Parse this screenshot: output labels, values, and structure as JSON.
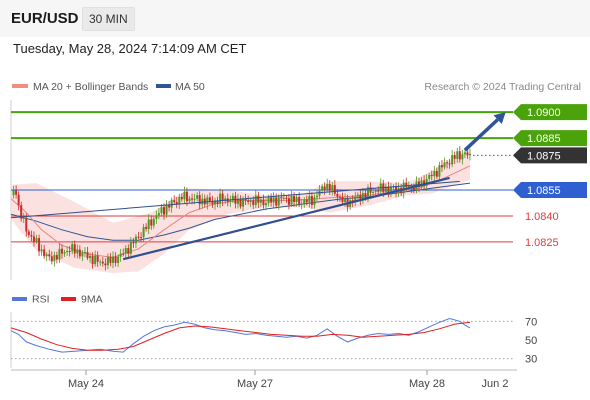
{
  "header": {
    "symbol": "EUR/USD",
    "timeframe": "30 MIN"
  },
  "timestamp": "Tuesday, May 28, 2024 7:14:09 AM CET",
  "chart_data": [
    {
      "type": "line",
      "title": "",
      "legend": [
        {
          "name": "MA 20 + Bollinger Bands",
          "color": "#f28b82"
        },
        {
          "name": "MA 50",
          "color": "#2f5597"
        }
      ],
      "legend_placement": "top-left",
      "watermark": "Research © 2024 Trading Central",
      "ylim": [
        1.0803,
        1.0907
      ],
      "current_price": {
        "label": "1.0875",
        "value": 1.0875,
        "color": "#333333"
      },
      "levels": [
        {
          "label": "1.0900",
          "value": 1.09,
          "kind": "resistance",
          "color": "#4aa30a"
        },
        {
          "label": "1.0885",
          "value": 1.0885,
          "kind": "resistance",
          "color": "#4aa30a"
        },
        {
          "label": "1.0855",
          "value": 1.0855,
          "kind": "pivot",
          "color": "#2f5fd0"
        },
        {
          "label": "1.0840",
          "value": 1.084,
          "kind": "support",
          "color": "#e23a3a"
        },
        {
          "label": "1.0825",
          "value": 1.0825,
          "kind": "support",
          "color": "#e23a3a"
        }
      ],
      "x_ticks": [
        "May 24",
        "May 27",
        "May 28",
        "Jun 2"
      ],
      "price_path": [
        [
          0,
          1.0852
        ],
        [
          2,
          1.0855
        ],
        [
          3,
          1.0845
        ],
        [
          4,
          1.084
        ],
        [
          6,
          1.0832
        ],
        [
          9,
          1.0826
        ],
        [
          12,
          1.082
        ],
        [
          15,
          1.0815
        ],
        [
          19,
          1.0818
        ],
        [
          23,
          1.0821
        ],
        [
          27,
          1.0819
        ],
        [
          31,
          1.0816
        ],
        [
          35,
          1.0813
        ],
        [
          39,
          1.0814
        ],
        [
          43,
          1.0817
        ],
        [
          47,
          1.0823
        ],
        [
          51,
          1.083
        ],
        [
          55,
          1.0837
        ],
        [
          59,
          1.0843
        ],
        [
          63,
          1.0847
        ],
        [
          67,
          1.0851
        ],
        [
          71,
          1.085
        ],
        [
          75,
          1.0849
        ],
        [
          79,
          1.0848
        ],
        [
          83,
          1.085
        ],
        [
          87,
          1.0849
        ],
        [
          91,
          1.0848
        ],
        [
          95,
          1.0849
        ],
        [
          99,
          1.0848
        ],
        [
          103,
          1.0849
        ],
        [
          107,
          1.085
        ],
        [
          111,
          1.0849
        ],
        [
          115,
          1.0848
        ],
        [
          119,
          1.085
        ],
        [
          123,
          1.0858
        ],
        [
          127,
          1.0854
        ],
        [
          131,
          1.0847
        ],
        [
          135,
          1.085
        ],
        [
          139,
          1.0853
        ],
        [
          143,
          1.0855
        ],
        [
          147,
          1.0856
        ],
        [
          151,
          1.0855
        ],
        [
          155,
          1.0857
        ],
        [
          159,
          1.0857
        ],
        [
          163,
          1.0861
        ],
        [
          167,
          1.0866
        ],
        [
          171,
          1.0871
        ],
        [
          175,
          1.0875
        ],
        [
          178,
          1.0876
        ],
        [
          180,
          1.0874
        ]
      ],
      "ma20": [
        [
          0,
          1.085
        ],
        [
          6,
          1.0842
        ],
        [
          12,
          1.0832
        ],
        [
          20,
          1.0823
        ],
        [
          30,
          1.0818
        ],
        [
          40,
          1.0816
        ],
        [
          50,
          1.0821
        ],
        [
          60,
          1.0832
        ],
        [
          70,
          1.0842
        ],
        [
          80,
          1.0847
        ],
        [
          90,
          1.0849
        ],
        [
          100,
          1.0849
        ],
        [
          110,
          1.0849
        ],
        [
          120,
          1.085
        ],
        [
          130,
          1.0851
        ],
        [
          140,
          1.0852
        ],
        [
          150,
          1.0854
        ],
        [
          160,
          1.0856
        ],
        [
          170,
          1.0862
        ],
        [
          180,
          1.0869
        ]
      ],
      "bollinger_upper": [
        [
          0,
          1.0858
        ],
        [
          10,
          1.0859
        ],
        [
          25,
          1.0848
        ],
        [
          40,
          1.0836
        ],
        [
          55,
          1.0842
        ],
        [
          70,
          1.0856
        ],
        [
          85,
          1.0855
        ],
        [
          100,
          1.0852
        ],
        [
          115,
          1.0853
        ],
        [
          125,
          1.086
        ],
        [
          140,
          1.086
        ],
        [
          155,
          1.0859
        ],
        [
          165,
          1.0866
        ],
        [
          180,
          1.0879
        ]
      ],
      "bollinger_lower": [
        [
          0,
          1.0838
        ],
        [
          10,
          1.082
        ],
        [
          25,
          1.081
        ],
        [
          40,
          1.0807
        ],
        [
          50,
          1.0808
        ],
        [
          60,
          1.0818
        ],
        [
          70,
          1.0832
        ],
        [
          85,
          1.0841
        ],
        [
          100,
          1.0845
        ],
        [
          115,
          1.0845
        ],
        [
          125,
          1.0842
        ],
        [
          140,
          1.0846
        ],
        [
          155,
          1.0852
        ],
        [
          165,
          1.0853
        ],
        [
          180,
          1.0861
        ]
      ],
      "ma50": [
        [
          0,
          1.0841
        ],
        [
          10,
          1.0837
        ],
        [
          20,
          1.0832
        ],
        [
          30,
          1.0828
        ],
        [
          40,
          1.0826
        ],
        [
          50,
          1.0826
        ],
        [
          60,
          1.0829
        ],
        [
          70,
          1.0833
        ],
        [
          80,
          1.0838
        ],
        [
          90,
          1.0841
        ],
        [
          100,
          1.0844
        ],
        [
          110,
          1.0846
        ],
        [
          120,
          1.0848
        ],
        [
          130,
          1.085
        ],
        [
          140,
          1.0851
        ],
        [
          150,
          1.0853
        ],
        [
          160,
          1.0855
        ],
        [
          170,
          1.0857
        ],
        [
          180,
          1.0859
        ]
      ],
      "trendlines": [
        {
          "from": [
            44,
            1.0815
          ],
          "to": [
            172,
            1.0862
          ]
        },
        {
          "from": [
            0,
            1.0839
          ],
          "to": [
            176,
            1.086
          ]
        }
      ],
      "forecast_arrow": {
        "from": [
          178,
          1.0878
        ],
        "to": [
          194,
          1.09
        ]
      }
    },
    {
      "type": "line",
      "title": "",
      "legend": [
        {
          "name": "RSI",
          "color": "#5577dd"
        },
        {
          "name": "9MA",
          "color": "#e02020"
        }
      ],
      "legend_placement": "top-left",
      "ylim": [
        20,
        80
      ],
      "y_ticks": [
        "70",
        "50",
        "30"
      ],
      "rsi": [
        [
          0,
          60
        ],
        [
          3,
          56
        ],
        [
          6,
          48
        ],
        [
          10,
          44
        ],
        [
          15,
          40
        ],
        [
          20,
          37
        ],
        [
          25,
          38
        ],
        [
          30,
          39
        ],
        [
          35,
          40
        ],
        [
          40,
          38
        ],
        [
          44,
          37
        ],
        [
          48,
          46
        ],
        [
          52,
          54
        ],
        [
          56,
          60
        ],
        [
          60,
          64
        ],
        [
          64,
          66
        ],
        [
          68,
          69
        ],
        [
          72,
          67
        ],
        [
          76,
          63
        ],
        [
          80,
          61
        ],
        [
          84,
          60
        ],
        [
          88,
          58
        ],
        [
          92,
          56
        ],
        [
          96,
          57
        ],
        [
          100,
          55
        ],
        [
          104,
          54
        ],
        [
          108,
          53
        ],
        [
          112,
          54
        ],
        [
          116,
          52
        ],
        [
          120,
          55
        ],
        [
          124,
          62
        ],
        [
          128,
          54
        ],
        [
          132,
          48
        ],
        [
          136,
          52
        ],
        [
          140,
          55
        ],
        [
          144,
          57
        ],
        [
          148,
          56
        ],
        [
          152,
          57
        ],
        [
          156,
          55
        ],
        [
          160,
          59
        ],
        [
          164,
          64
        ],
        [
          168,
          69
        ],
        [
          172,
          73
        ],
        [
          176,
          70
        ],
        [
          178,
          66
        ],
        [
          180,
          63
        ]
      ],
      "rsi_ma9": [
        [
          0,
          63
        ],
        [
          6,
          58
        ],
        [
          12,
          51
        ],
        [
          18,
          45
        ],
        [
          24,
          41
        ],
        [
          30,
          39
        ],
        [
          36,
          39
        ],
        [
          42,
          40
        ],
        [
          48,
          43
        ],
        [
          54,
          50
        ],
        [
          60,
          57
        ],
        [
          66,
          63
        ],
        [
          72,
          65
        ],
        [
          78,
          64
        ],
        [
          84,
          62
        ],
        [
          90,
          60
        ],
        [
          96,
          58
        ],
        [
          102,
          56
        ],
        [
          108,
          55
        ],
        [
          114,
          54
        ],
        [
          120,
          54
        ],
        [
          126,
          56
        ],
        [
          132,
          55
        ],
        [
          138,
          53
        ],
        [
          144,
          54
        ],
        [
          150,
          55
        ],
        [
          156,
          56
        ],
        [
          162,
          58
        ],
        [
          168,
          62
        ],
        [
          174,
          67
        ],
        [
          180,
          69
        ]
      ]
    }
  ]
}
